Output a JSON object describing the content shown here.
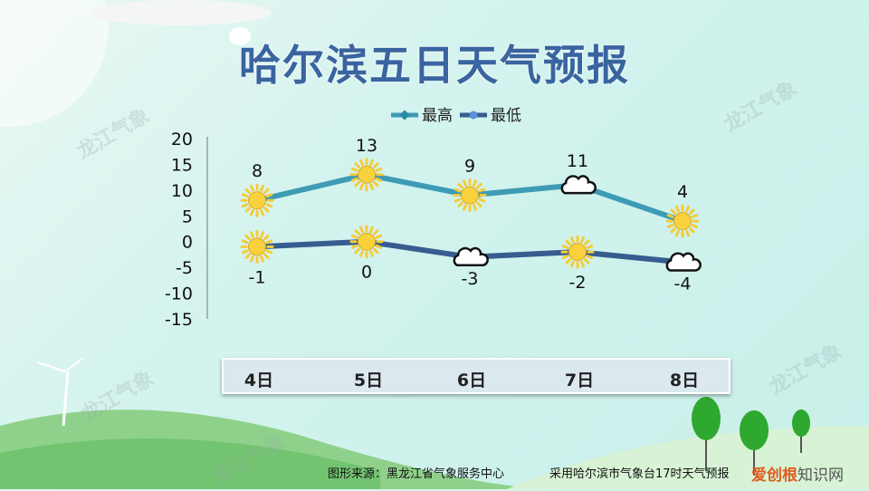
{
  "title": "哈尔滨五日天气预报",
  "watermark": "龙江气象",
  "footer": {
    "source": "图形来源：黑龙江省气象服务中心",
    "note": "采用哈尔滨市气象台17时天气预报",
    "brand_a": "爱创根",
    "brand_b": "知识网"
  },
  "colors": {
    "high": "#3d9bb5",
    "low": "#375c90",
    "sun": "#f8d13c",
    "title": "#3a64a0"
  },
  "chart_data": {
    "type": "line",
    "categories": [
      "4日",
      "5日",
      "6日",
      "7日",
      "8日"
    ],
    "ylim": [
      -15,
      20
    ],
    "yticks": [
      "20",
      "15",
      "10",
      "5",
      "0",
      "-5",
      "-10",
      "-15"
    ],
    "legend_position": "top",
    "grid": false,
    "series": [
      {
        "name": "最高",
        "values": [
          8,
          13,
          9,
          11,
          4
        ],
        "weather_icons": [
          "sun",
          "sun",
          "sun",
          "cloud",
          "sun"
        ],
        "labels": [
          "8",
          "13",
          "9",
          "11",
          "4"
        ]
      },
      {
        "name": "最低",
        "values": [
          -1,
          0,
          -3,
          -2,
          -4
        ],
        "weather_icons": [
          "sun",
          "sun",
          "cloud",
          "sun",
          "cloud"
        ],
        "labels": [
          "-1",
          "0",
          "-3",
          "-2",
          "-4"
        ]
      }
    ]
  }
}
